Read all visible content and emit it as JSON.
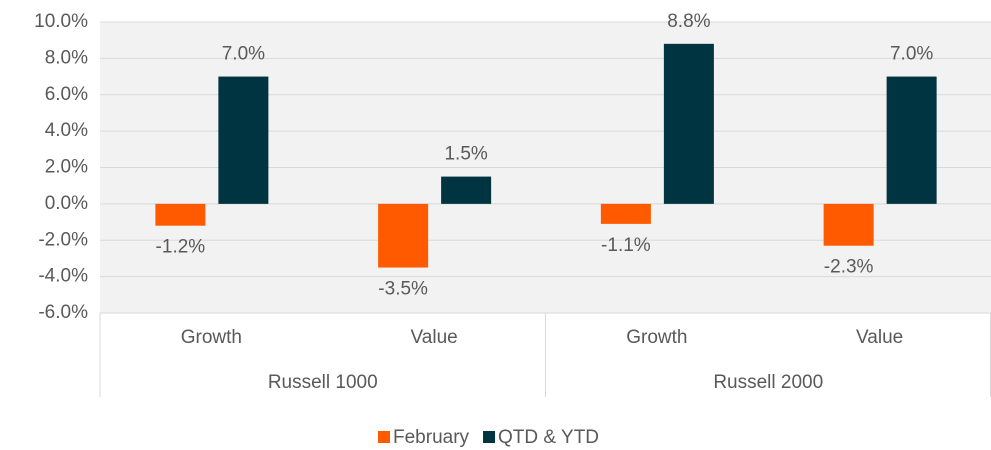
{
  "chart_data": {
    "type": "bar",
    "categories": [
      "Growth",
      "Value",
      "Growth",
      "Value"
    ],
    "groups": [
      "Russell 1000",
      "Russell 2000"
    ],
    "series": [
      {
        "name": "February",
        "color": "#ff5a00",
        "values": [
          -1.2,
          -3.5,
          -1.1,
          -2.3
        ],
        "value_labels": [
          "-1.2%",
          "-3.5%",
          "-1.1%",
          "-2.3%"
        ]
      },
      {
        "name": "QTD & YTD",
        "color": "#003440",
        "values": [
          7.0,
          1.5,
          8.8,
          7.0
        ],
        "value_labels": [
          "7.0%",
          "1.5%",
          "8.8%",
          "7.0%"
        ]
      }
    ],
    "ylim": [
      -6,
      10
    ],
    "yticks": [
      {
        "value": -6,
        "label": "-6.0%"
      },
      {
        "value": -4,
        "label": "-4.0%"
      },
      {
        "value": -2,
        "label": "-2.0%"
      },
      {
        "value": 0,
        "label": "0.0%"
      },
      {
        "value": 2,
        "label": "2.0%"
      },
      {
        "value": 4,
        "label": "4.0%"
      },
      {
        "value": 6,
        "label": "6.0%"
      },
      {
        "value": 8,
        "label": "8.0%"
      },
      {
        "value": 10,
        "label": "10.0%"
      }
    ],
    "grid": true
  }
}
